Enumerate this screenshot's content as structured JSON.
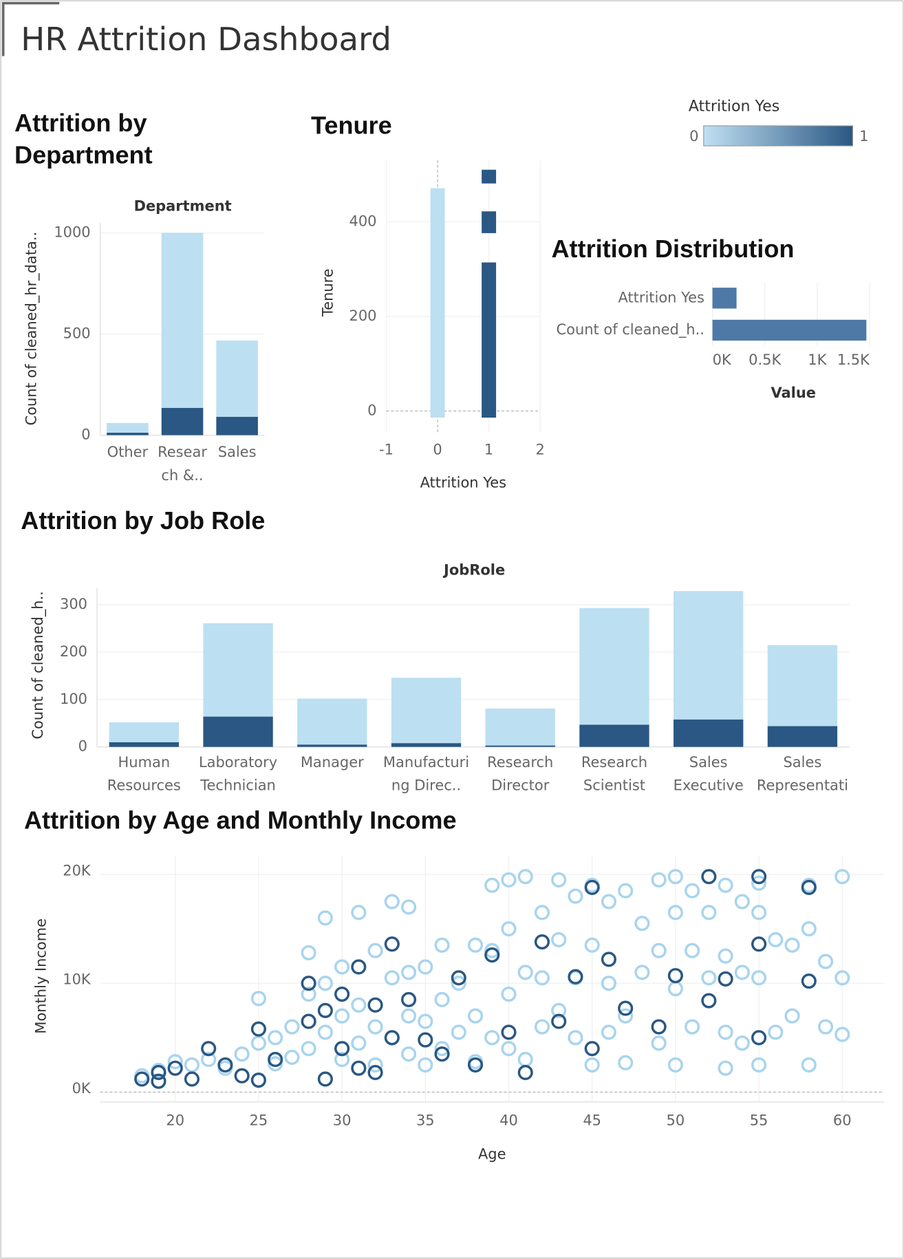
{
  "title": "HR Attrition Dashboard",
  "legend": {
    "title": "Attrition Yes",
    "range": [
      0,
      1
    ],
    "colors": [
      "#c0e0f3",
      "#2a5783"
    ]
  },
  "chart_data": [
    {
      "type": "stacked_bar",
      "title": "Attrition by Department",
      "header": "Department",
      "y_label": "Count of cleaned_hr_data..",
      "categories": [
        "Other",
        "Research &..",
        "Sales"
      ],
      "series": [
        {
          "color": "#2a5783",
          "values": [
            12,
            135,
            91
          ]
        },
        {
          "color": "#bcdff2",
          "values": [
            48,
            865,
            377
          ]
        }
      ],
      "ylim": [
        0,
        1050
      ],
      "yticks": [
        0,
        500,
        1000
      ],
      "grid": true
    },
    {
      "type": "floating_bar",
      "title": "Tenure",
      "x_label": "Attrition Yes",
      "y_label": "Tenure",
      "series": [
        {
          "color": "#bcdff2",
          "x": [
            0
          ],
          "low": [
            -14
          ],
          "high": [
            471
          ]
        },
        {
          "color": "#2a5783",
          "x": [
            1,
            1,
            1
          ],
          "low": [
            -14,
            376,
            481
          ],
          "high": [
            314,
            422,
            510
          ]
        }
      ],
      "xlim": [
        -1,
        2
      ],
      "xticks": [
        -1,
        0,
        1,
        2
      ],
      "ylim": [
        -46,
        530
      ],
      "yticks": [
        0,
        200,
        400
      ],
      "grid": true
    },
    {
      "type": "hbar",
      "title": "Attrition Distribution",
      "x_label": "Value",
      "categories": [
        "Attrition Yes",
        "Count of cleaned_h.."
      ],
      "values": [
        230,
        1470
      ],
      "color": "#4e79a7",
      "xlim": [
        0,
        1500
      ],
      "xticks": [
        {
          "value": 0,
          "label": "0K"
        },
        {
          "value": 500,
          "label": "0.5K"
        },
        {
          "value": 1000,
          "label": "1K"
        },
        {
          "value": 1500,
          "label": "1.5K"
        }
      ],
      "grid": true
    },
    {
      "type": "stacked_bar",
      "title": "Attrition by Job Role",
      "header": "JobRole",
      "y_label": "Count of cleaned_h..",
      "categories": [
        "Human Resources",
        "Laboratory Technician",
        "Manager",
        "Manufacturing Direc..",
        "Research Director",
        "Research Scientist",
        "Sales Executive",
        "Sales Representative"
      ],
      "series": [
        {
          "color": "#2a5783",
          "values": [
            10,
            64,
            5,
            8,
            3,
            47,
            58,
            44
          ]
        },
        {
          "color": "#bcdff2",
          "values": [
            42,
            197,
            97,
            138,
            78,
            246,
            271,
            171
          ]
        }
      ],
      "ylim": [
        0,
        335
      ],
      "yticks": [
        0,
        100,
        200,
        300
      ],
      "grid": true
    },
    {
      "type": "scatter",
      "title": "Attrition by Age and Monthly Income",
      "x_label": "Age",
      "y_label": "Monthly Income",
      "series": [
        {
          "color": "#a8d4ee",
          "x": [
            18,
            19,
            20,
            21,
            22,
            23,
            24,
            25,
            25,
            26,
            26,
            27,
            27,
            28,
            28,
            28,
            29,
            29,
            29,
            30,
            30,
            30,
            31,
            31,
            31,
            32,
            32,
            32,
            33,
            33,
            33,
            34,
            34,
            34,
            34,
            35,
            35,
            35,
            36,
            36,
            36,
            37,
            37,
            38,
            38,
            38,
            39,
            39,
            39,
            40,
            40,
            40,
            40,
            41,
            41,
            41,
            42,
            42,
            42,
            43,
            43,
            43,
            44,
            44,
            44,
            45,
            45,
            45,
            46,
            46,
            46,
            47,
            47,
            47,
            48,
            48,
            49,
            49,
            49,
            50,
            50,
            50,
            50,
            51,
            51,
            51,
            52,
            52,
            53,
            53,
            53,
            53,
            54,
            54,
            54,
            55,
            55,
            55,
            55,
            56,
            56,
            57,
            57,
            58,
            58,
            58,
            59,
            59,
            60,
            60,
            60
          ],
          "y": [
            1500,
            2000,
            2800,
            2500,
            3000,
            2200,
            3500,
            8600,
            4500,
            5000,
            2600,
            6000,
            3200,
            12800,
            9000,
            4000,
            16000,
            10000,
            5500,
            11500,
            7000,
            3000,
            16500,
            8000,
            4500,
            13000,
            6000,
            2500,
            17500,
            10500,
            5000,
            17000,
            11000,
            7000,
            3500,
            11500,
            6500,
            2500,
            13500,
            8500,
            4000,
            10000,
            5500,
            13500,
            7000,
            2800,
            19000,
            13000,
            5000,
            19500,
            15000,
            9000,
            4000,
            19800,
            11000,
            3000,
            16500,
            10500,
            6000,
            19500,
            14000,
            7500,
            18000,
            10500,
            5000,
            19000,
            13500,
            2500,
            17500,
            10000,
            5500,
            18500,
            7000,
            2700,
            15500,
            11000,
            19500,
            13000,
            4500,
            19800,
            16500,
            9500,
            2500,
            18500,
            13000,
            6000,
            16500,
            10500,
            19000,
            12500,
            5500,
            2200,
            17500,
            11000,
            4500,
            19200,
            16500,
            10500,
            2500,
            14000,
            5500,
            13500,
            7000,
            19000,
            15000,
            2500,
            12000,
            6000,
            19800,
            10500,
            5300
          ]
        },
        {
          "color": "#2a5783",
          "x": [
            18,
            19,
            19,
            20,
            21,
            22,
            23,
            24,
            25,
            25,
            26,
            28,
            28,
            29,
            29,
            30,
            30,
            31,
            31,
            32,
            32,
            33,
            33,
            34,
            35,
            36,
            37,
            38,
            39,
            40,
            41,
            42,
            43,
            44,
            45,
            45,
            46,
            47,
            49,
            50,
            52,
            52,
            53,
            55,
            55,
            55,
            58,
            58
          ],
          "y": [
            1200,
            1800,
            1000,
            2200,
            1200,
            4000,
            2500,
            1500,
            5800,
            1100,
            3000,
            6500,
            10000,
            7500,
            1200,
            9000,
            4000,
            11500,
            2200,
            8000,
            1800,
            13600,
            5000,
            8500,
            4800,
            3500,
            10500,
            2500,
            12600,
            5500,
            1800,
            13800,
            6500,
            10600,
            18800,
            4000,
            12200,
            7700,
            6000,
            10700,
            19800,
            8400,
            10400,
            19800,
            13600,
            5000,
            18800,
            10200
          ]
        }
      ],
      "xlim": [
        15.5,
        62.5
      ],
      "xticks": [
        20,
        25,
        30,
        35,
        40,
        45,
        50,
        55,
        60
      ],
      "ylim": [
        -900,
        21700
      ],
      "yticks": [
        {
          "value": 0,
          "label": "0K"
        },
        {
          "value": 10000,
          "label": "10K"
        },
        {
          "value": 20000,
          "label": "20K"
        }
      ],
      "grid": true
    }
  ]
}
